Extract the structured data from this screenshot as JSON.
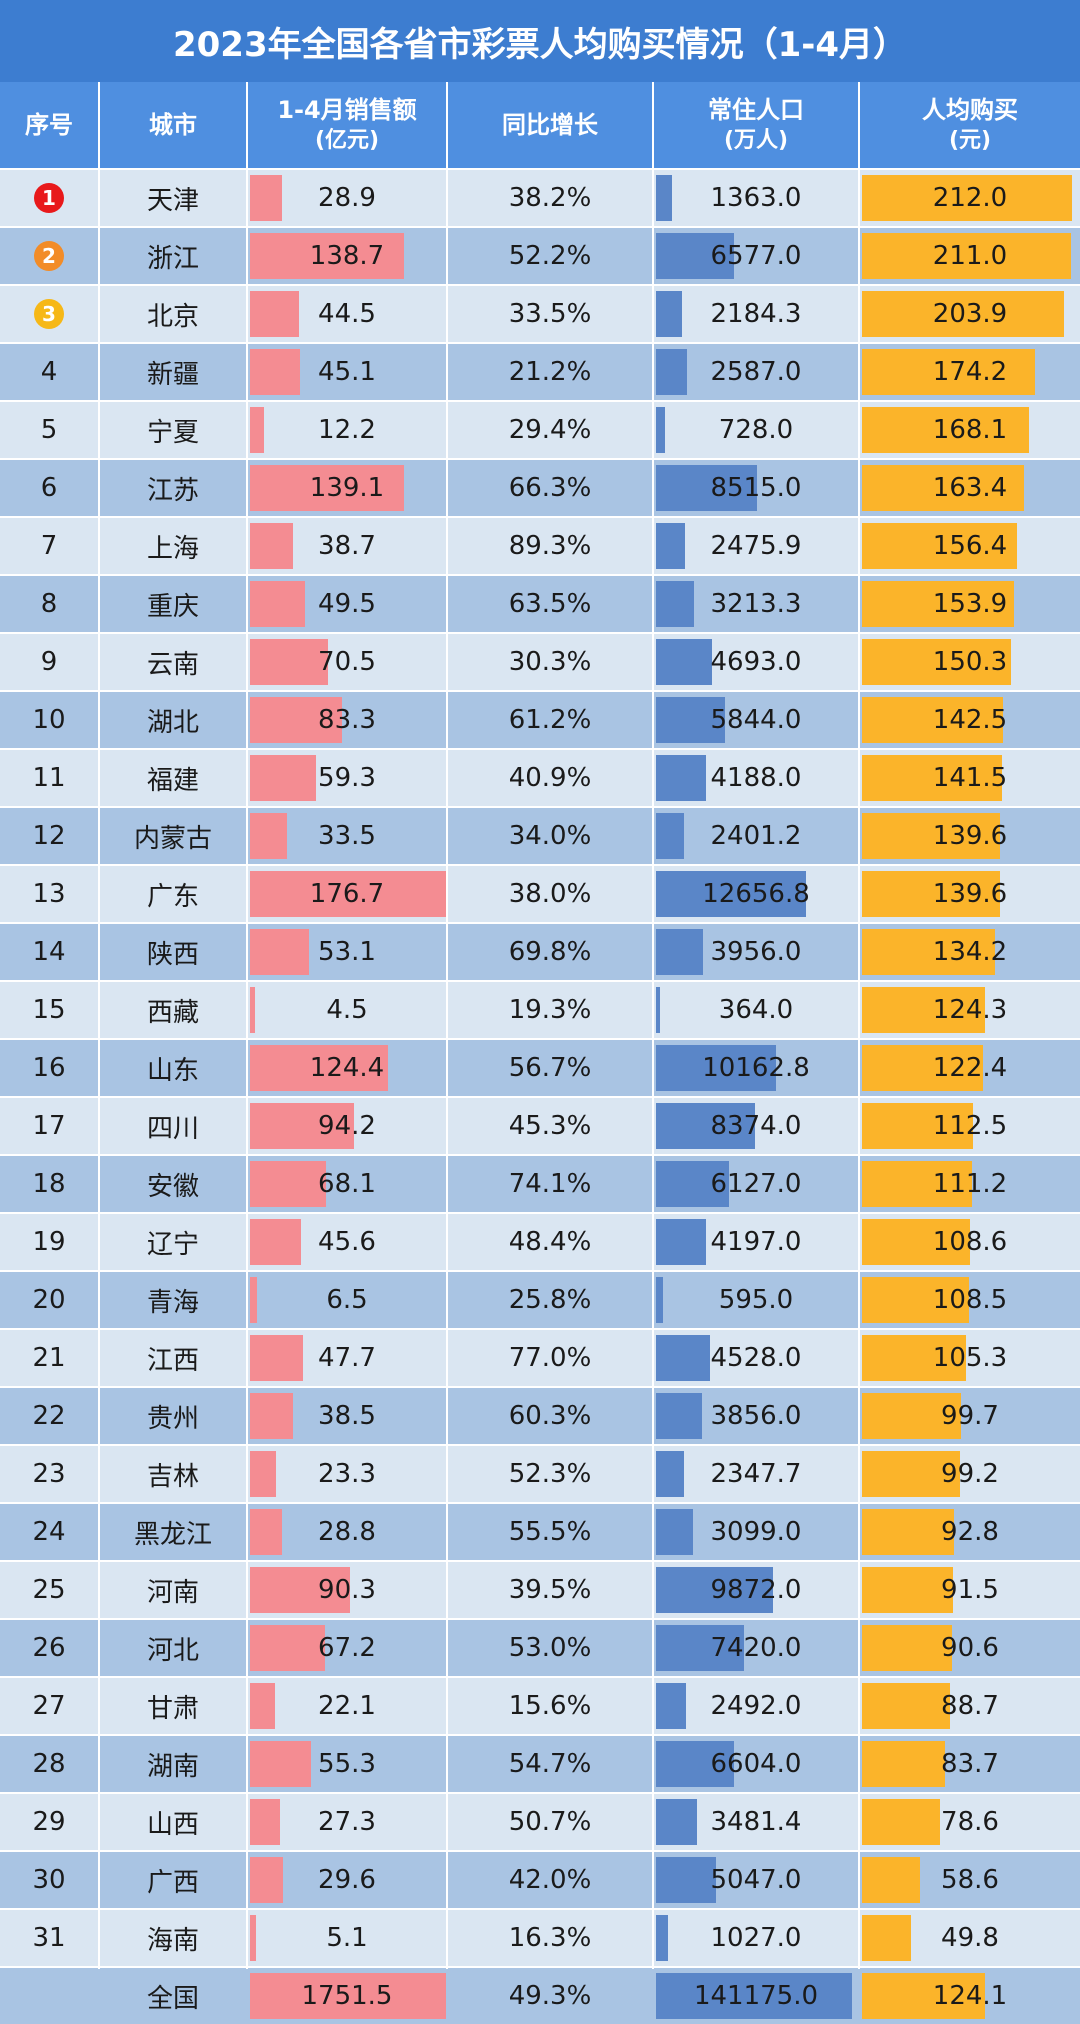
{
  "title": "2023年全国各省市彩票人均购买情况（1-4月）",
  "header": {
    "rank": "序号",
    "city": "城市",
    "sales_line1": "1-4月销售额",
    "sales_line2": "(亿元)",
    "growth": "同比增长",
    "pop_line1": "常住人口",
    "pop_line2": "(万人)",
    "per_line1": "人均购买",
    "per_line2": "(元)"
  },
  "colors": {
    "title_bg": "#3d7dd0",
    "header_bg": "#4f8fe0",
    "row_dark": "#a9c4e3",
    "row_light": "#dae6f2",
    "sales_bar": "#f48c92",
    "pop_bar": "#5a86c8",
    "per_capita_bar": "#fbb42a",
    "medal_1": "#e8191b",
    "medal_2": "#f28c28",
    "medal_3": "#f6b817"
  },
  "chart_data": {
    "type": "table",
    "title": "2023年全国各省市彩票人均购买情况（1-4月）",
    "columns": [
      "序号",
      "城市",
      "1-4月销售额(亿元)",
      "同比增长",
      "常住人口(万人)",
      "人均购买(元)"
    ],
    "rows": [
      {
        "rank": "1",
        "city": "天津",
        "sales": "28.9",
        "growth": "38.2%",
        "population": "1363.0",
        "per_capita": "212.0"
      },
      {
        "rank": "2",
        "city": "浙江",
        "sales": "138.7",
        "growth": "52.2%",
        "population": "6577.0",
        "per_capita": "211.0"
      },
      {
        "rank": "3",
        "city": "北京",
        "sales": "44.5",
        "growth": "33.5%",
        "population": "2184.3",
        "per_capita": "203.9"
      },
      {
        "rank": "4",
        "city": "新疆",
        "sales": "45.1",
        "growth": "21.2%",
        "population": "2587.0",
        "per_capita": "174.2"
      },
      {
        "rank": "5",
        "city": "宁夏",
        "sales": "12.2",
        "growth": "29.4%",
        "population": "728.0",
        "per_capita": "168.1"
      },
      {
        "rank": "6",
        "city": "江苏",
        "sales": "139.1",
        "growth": "66.3%",
        "population": "8515.0",
        "per_capita": "163.4"
      },
      {
        "rank": "7",
        "city": "上海",
        "sales": "38.7",
        "growth": "89.3%",
        "population": "2475.9",
        "per_capita": "156.4"
      },
      {
        "rank": "8",
        "city": "重庆",
        "sales": "49.5",
        "growth": "63.5%",
        "population": "3213.3",
        "per_capita": "153.9"
      },
      {
        "rank": "9",
        "city": "云南",
        "sales": "70.5",
        "growth": "30.3%",
        "population": "4693.0",
        "per_capita": "150.3"
      },
      {
        "rank": "10",
        "city": "湖北",
        "sales": "83.3",
        "growth": "61.2%",
        "population": "5844.0",
        "per_capita": "142.5"
      },
      {
        "rank": "11",
        "city": "福建",
        "sales": "59.3",
        "growth": "40.9%",
        "population": "4188.0",
        "per_capita": "141.5"
      },
      {
        "rank": "12",
        "city": "内蒙古",
        "sales": "33.5",
        "growth": "34.0%",
        "population": "2401.2",
        "per_capita": "139.6"
      },
      {
        "rank": "13",
        "city": "广东",
        "sales": "176.7",
        "growth": "38.0%",
        "population": "12656.8",
        "per_capita": "139.6"
      },
      {
        "rank": "14",
        "city": "陕西",
        "sales": "53.1",
        "growth": "69.8%",
        "population": "3956.0",
        "per_capita": "134.2"
      },
      {
        "rank": "15",
        "city": "西藏",
        "sales": "4.5",
        "growth": "19.3%",
        "population": "364.0",
        "per_capita": "124.3"
      },
      {
        "rank": "16",
        "city": "山东",
        "sales": "124.4",
        "growth": "56.7%",
        "population": "10162.8",
        "per_capita": "122.4"
      },
      {
        "rank": "17",
        "city": "四川",
        "sales": "94.2",
        "growth": "45.3%",
        "population": "8374.0",
        "per_capita": "112.5"
      },
      {
        "rank": "18",
        "city": "安徽",
        "sales": "68.1",
        "growth": "74.1%",
        "population": "6127.0",
        "per_capita": "111.2"
      },
      {
        "rank": "19",
        "city": "辽宁",
        "sales": "45.6",
        "growth": "48.4%",
        "population": "4197.0",
        "per_capita": "108.6"
      },
      {
        "rank": "20",
        "city": "青海",
        "sales": "6.5",
        "growth": "25.8%",
        "population": "595.0",
        "per_capita": "108.5"
      },
      {
        "rank": "21",
        "city": "江西",
        "sales": "47.7",
        "growth": "77.0%",
        "population": "4528.0",
        "per_capita": "105.3"
      },
      {
        "rank": "22",
        "city": "贵州",
        "sales": "38.5",
        "growth": "60.3%",
        "population": "3856.0",
        "per_capita": "99.7"
      },
      {
        "rank": "23",
        "city": "吉林",
        "sales": "23.3",
        "growth": "52.3%",
        "population": "2347.7",
        "per_capita": "99.2"
      },
      {
        "rank": "24",
        "city": "黑龙江",
        "sales": "28.8",
        "growth": "55.5%",
        "population": "3099.0",
        "per_capita": "92.8"
      },
      {
        "rank": "25",
        "city": "河南",
        "sales": "90.3",
        "growth": "39.5%",
        "population": "9872.0",
        "per_capita": "91.5"
      },
      {
        "rank": "26",
        "city": "河北",
        "sales": "67.2",
        "growth": "53.0%",
        "population": "7420.0",
        "per_capita": "90.6"
      },
      {
        "rank": "27",
        "city": "甘肃",
        "sales": "22.1",
        "growth": "15.6%",
        "population": "2492.0",
        "per_capita": "88.7"
      },
      {
        "rank": "28",
        "city": "湖南",
        "sales": "55.3",
        "growth": "54.7%",
        "population": "6604.0",
        "per_capita": "83.7"
      },
      {
        "rank": "29",
        "city": "山西",
        "sales": "27.3",
        "growth": "50.7%",
        "population": "3481.4",
        "per_capita": "78.6"
      },
      {
        "rank": "30",
        "city": "广西",
        "sales": "29.6",
        "growth": "42.0%",
        "population": "5047.0",
        "per_capita": "58.6"
      },
      {
        "rank": "31",
        "city": "海南",
        "sales": "5.1",
        "growth": "16.3%",
        "population": "1027.0",
        "per_capita": "49.8"
      },
      {
        "rank": "",
        "city": "全国",
        "sales": "1751.5",
        "growth": "49.3%",
        "population": "141175.0",
        "per_capita": "124.1"
      }
    ],
    "bar_scales": {
      "sales_max": 176.7,
      "population_max": 12656.8,
      "per_capita_max": 212.0
    }
  }
}
